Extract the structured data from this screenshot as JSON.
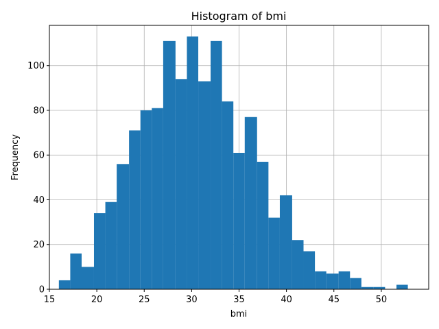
{
  "chart_data": {
    "type": "bar",
    "title": "Histogram of bmi",
    "xlabel": "bmi",
    "ylabel": "Frequency",
    "xlim": [
      15,
      55
    ],
    "ylim": [
      0,
      118
    ],
    "x_ticks": [
      15,
      20,
      25,
      30,
      35,
      40,
      45,
      50
    ],
    "y_ticks": [
      0,
      20,
      40,
      60,
      80,
      100
    ],
    "grid": true,
    "bar_color": "#1f77b4",
    "bins": [
      {
        "x0": 16.0,
        "x1": 17.2,
        "count": 4
      },
      {
        "x0": 17.2,
        "x1": 18.4,
        "count": 16
      },
      {
        "x0": 18.4,
        "x1": 19.7,
        "count": 10
      },
      {
        "x0": 19.7,
        "x1": 20.9,
        "count": 34
      },
      {
        "x0": 20.9,
        "x1": 22.1,
        "count": 39
      },
      {
        "x0": 22.1,
        "x1": 23.4,
        "count": 56
      },
      {
        "x0": 23.4,
        "x1": 24.6,
        "count": 71
      },
      {
        "x0": 24.6,
        "x1": 25.8,
        "count": 80
      },
      {
        "x0": 25.8,
        "x1": 27.0,
        "count": 81
      },
      {
        "x0": 27.0,
        "x1": 28.3,
        "count": 111
      },
      {
        "x0": 28.3,
        "x1": 29.5,
        "count": 94
      },
      {
        "x0": 29.5,
        "x1": 30.7,
        "count": 113
      },
      {
        "x0": 30.7,
        "x1": 32.0,
        "count": 93
      },
      {
        "x0": 32.0,
        "x1": 33.2,
        "count": 111
      },
      {
        "x0": 33.2,
        "x1": 34.4,
        "count": 84
      },
      {
        "x0": 34.4,
        "x1": 35.6,
        "count": 61
      },
      {
        "x0": 35.6,
        "x1": 36.9,
        "count": 77
      },
      {
        "x0": 36.9,
        "x1": 38.1,
        "count": 57
      },
      {
        "x0": 38.1,
        "x1": 39.3,
        "count": 32
      },
      {
        "x0": 39.3,
        "x1": 40.6,
        "count": 42
      },
      {
        "x0": 40.6,
        "x1": 41.8,
        "count": 22
      },
      {
        "x0": 41.8,
        "x1": 43.0,
        "count": 17
      },
      {
        "x0": 43.0,
        "x1": 44.2,
        "count": 8
      },
      {
        "x0": 44.2,
        "x1": 45.5,
        "count": 7
      },
      {
        "x0": 45.5,
        "x1": 46.7,
        "count": 8
      },
      {
        "x0": 46.7,
        "x1": 47.9,
        "count": 5
      },
      {
        "x0": 47.9,
        "x1": 49.2,
        "count": 1
      },
      {
        "x0": 49.2,
        "x1": 50.4,
        "count": 1
      },
      {
        "x0": 50.4,
        "x1": 51.6,
        "count": 0
      },
      {
        "x0": 51.6,
        "x1": 52.8,
        "count": 2
      }
    ]
  }
}
